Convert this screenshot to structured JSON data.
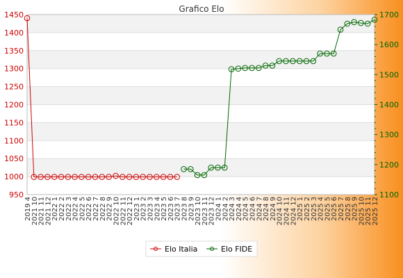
{
  "chart_data": {
    "type": "line",
    "title": "Grafico Elo",
    "x": [
      "2019 4",
      "2021 10",
      "2021 11",
      "2021 12",
      "2022 1",
      "2022 2",
      "2022 3",
      "2022 4",
      "2022 5",
      "2022 6",
      "2022 7",
      "2022 8",
      "2022 9",
      "2022 10",
      "2022 11",
      "2022 12",
      "2023 1",
      "2023 2",
      "2023 3",
      "2023 4",
      "2023 5",
      "2023 6",
      "2023 7",
      "2023 8",
      "2023 9",
      "2023 10",
      "2023 11",
      "2023 12",
      "2024 1",
      "2024 2",
      "2024 3",
      "2024 4",
      "2024 5",
      "2024 6",
      "2024 7",
      "2024 8",
      "2024 9",
      "2024 10",
      "2024 11",
      "2024 12",
      "2025 1",
      "2025 2",
      "2025 3",
      "2025 4",
      "2025 5",
      "2025 6",
      "2025 7",
      "2025 8",
      "2025 9",
      "2025 10",
      "2025 11",
      "2025 12"
    ],
    "y_left": {
      "min": 950,
      "max": 1450,
      "ticks": [
        950,
        1000,
        1050,
        1100,
        1150,
        1200,
        1250,
        1300,
        1350,
        1400,
        1450
      ]
    },
    "y_right": {
      "min": 1100,
      "max": 1700,
      "ticks": [
        1100,
        1200,
        1300,
        1400,
        1500,
        1600,
        1700
      ]
    },
    "grid": true,
    "legend_position": "bottom",
    "series": [
      {
        "name": "Elo Italia",
        "axis": "left",
        "color": "#cc0000",
        "values": [
          1440,
          999,
          999,
          999,
          999,
          999,
          999,
          999,
          999,
          999,
          999,
          999,
          999,
          1002,
          999,
          999,
          999,
          999,
          999,
          999,
          999,
          999,
          999,
          null,
          null,
          null,
          null,
          null,
          null,
          null,
          null,
          null,
          null,
          null,
          null,
          null,
          null,
          null,
          null,
          null,
          null,
          null,
          null,
          null,
          null,
          null,
          null,
          null,
          null,
          null,
          null,
          null
        ]
      },
      {
        "name": "Elo FIDE",
        "axis": "right",
        "color": "#006600",
        "values": [
          null,
          null,
          null,
          null,
          null,
          null,
          null,
          null,
          null,
          null,
          null,
          null,
          null,
          null,
          null,
          null,
          null,
          null,
          null,
          null,
          null,
          null,
          null,
          1185,
          1185,
          1165,
          1165,
          1190,
          1190,
          1190,
          1518,
          1520,
          1522,
          1522,
          1522,
          1530,
          1530,
          1545,
          1545,
          1545,
          1545,
          1545,
          1545,
          1570,
          1570,
          1570,
          1650,
          1670,
          1675,
          1672,
          1670,
          1683
        ]
      }
    ]
  }
}
